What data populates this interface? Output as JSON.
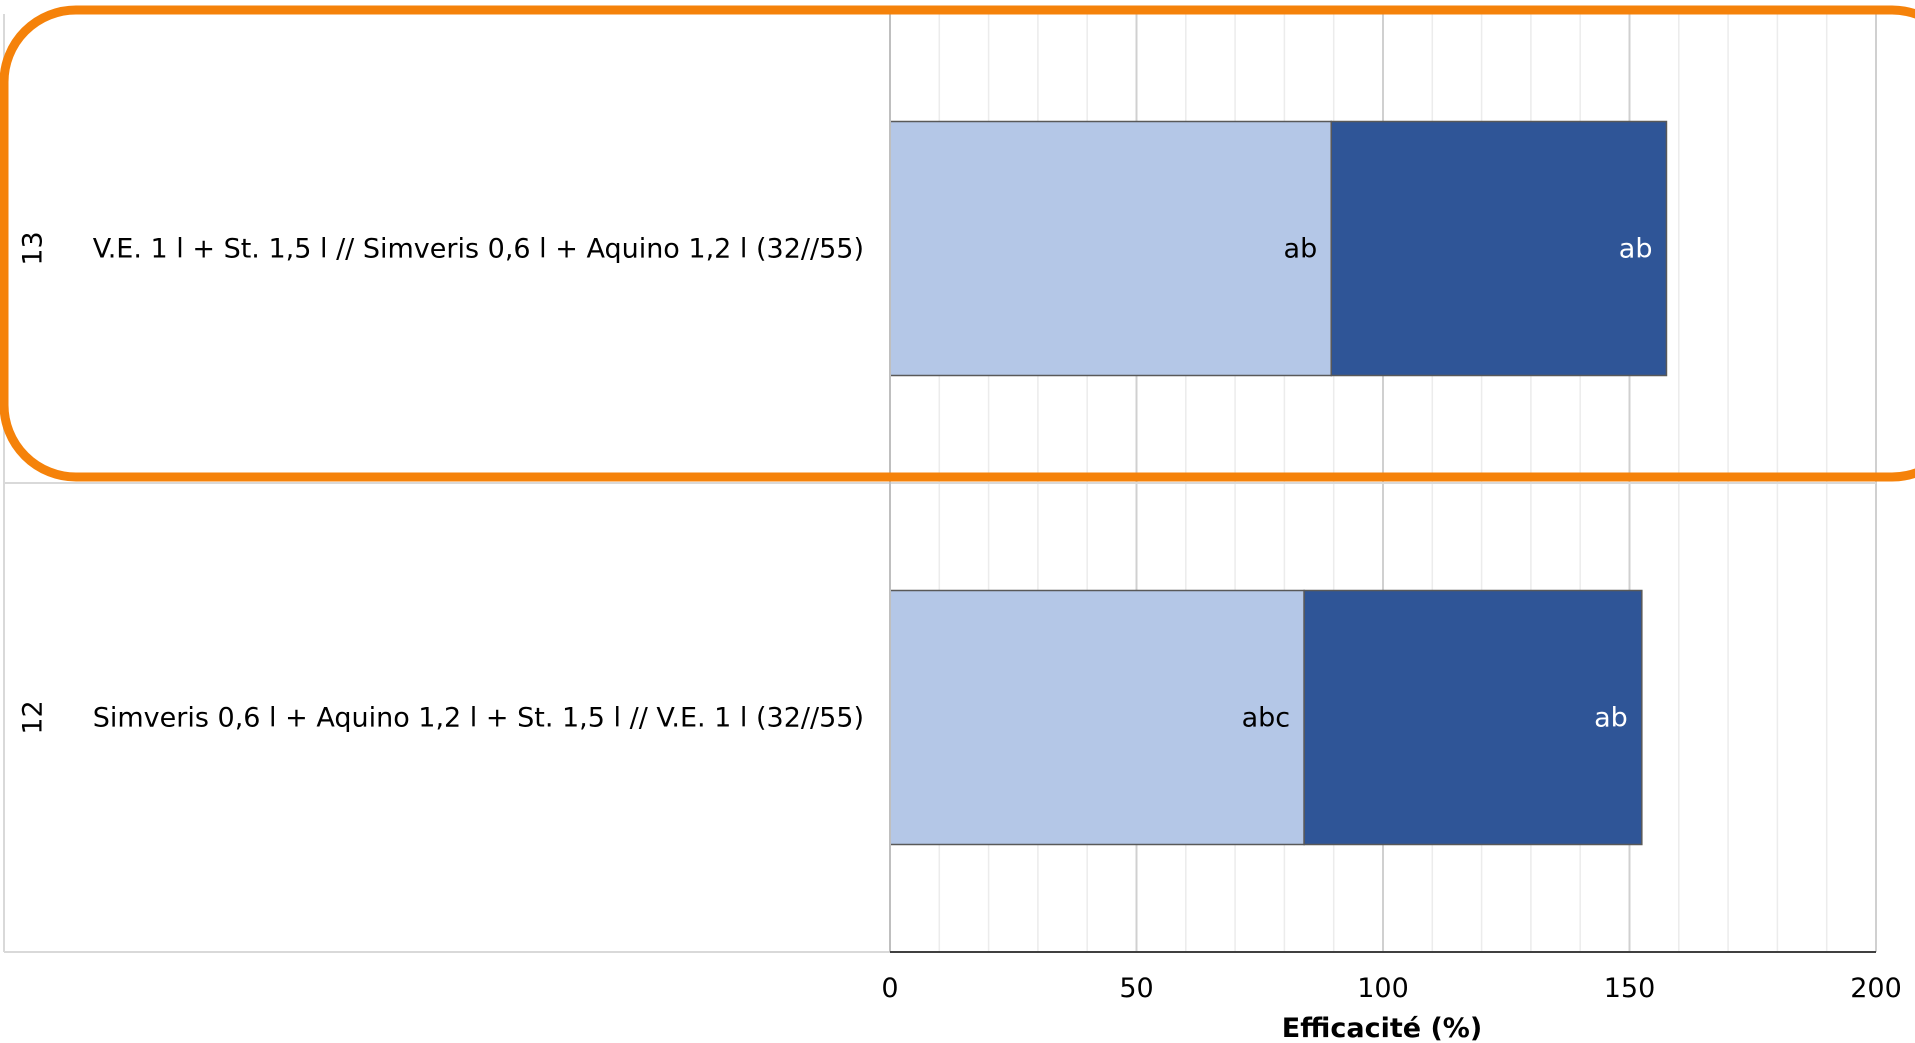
{
  "chart_data": {
    "type": "bar",
    "orientation": "horizontal",
    "stacked": true,
    "xlabel": "Efficacité (%)",
    "xlim": [
      0,
      200
    ],
    "x_ticks": [
      "0",
      "50",
      "100",
      "150",
      "200"
    ],
    "x_tick_values": [
      0,
      50,
      100,
      150,
      200
    ],
    "minor_grid_step": 10,
    "grid": true,
    "categories": [
      {
        "number": "13",
        "label": "V.E. 1 l + St. 1,5 l  // Simveris 0,6 l + Aquino 1,2 l (32//55)"
      },
      {
        "number": "12",
        "label": "Simveris 0,6 l + Aquino 1,2 l + St. 1,5 l  // V.E. 1 l (32//55)"
      }
    ],
    "series": [
      {
        "color": "#b4c7e7",
        "label_color": "#000000",
        "values": [
          89.5,
          84
        ],
        "labels": [
          "ab",
          "abc"
        ]
      },
      {
        "color": "#2f5597",
        "label_color": "#ffffff",
        "values": [
          68,
          68.5
        ],
        "labels": [
          "ab",
          "ab"
        ]
      }
    ],
    "highlight": {
      "category_index": 0,
      "color": "#f5820a"
    }
  }
}
